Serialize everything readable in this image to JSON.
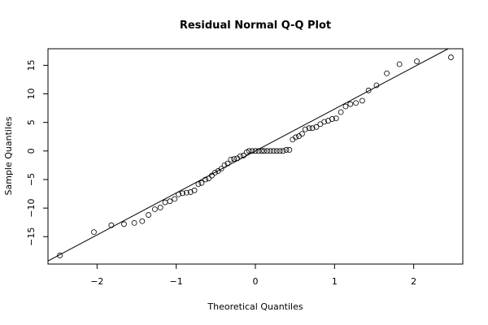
{
  "chart_data": {
    "type": "scatter",
    "title": "Residual Normal Q-Q Plot",
    "xlabel": "Theoretical Quantiles",
    "ylabel": "Sample Quantiles",
    "xlim": [
      -2.62,
      2.62
    ],
    "ylim": [
      -19.8,
      17.9
    ],
    "xticks": [
      -2,
      -1,
      0,
      1,
      2
    ],
    "yticks": [
      -15,
      -10,
      -5,
      0,
      5,
      10,
      15
    ],
    "xtick_labels": [
      "−2",
      "−1",
      "0",
      "1",
      "2"
    ],
    "ytick_labels": [
      "−15",
      "−10",
      "−5",
      "0",
      "5",
      "10",
      "15"
    ],
    "grid": false,
    "reference_line": {
      "intercept": 0.0,
      "slope": 7.35
    },
    "points": [
      [
        -2.47,
        -18.3
      ],
      [
        -2.04,
        -14.2
      ],
      [
        -1.82,
        -13.0
      ],
      [
        -1.66,
        -12.8
      ],
      [
        -1.53,
        -12.6
      ],
      [
        -1.43,
        -12.3
      ],
      [
        -1.35,
        -11.2
      ],
      [
        -1.27,
        -10.2
      ],
      [
        -1.2,
        -9.9
      ],
      [
        -1.14,
        -9.0
      ],
      [
        -1.08,
        -8.8
      ],
      [
        -1.02,
        -8.4
      ],
      [
        -0.97,
        -7.6
      ],
      [
        -0.92,
        -7.4
      ],
      [
        -0.87,
        -7.3
      ],
      [
        -0.82,
        -7.2
      ],
      [
        -0.77,
        -6.9
      ],
      [
        -0.72,
        -5.8
      ],
      [
        -0.68,
        -5.6
      ],
      [
        -0.63,
        -5.0
      ],
      [
        -0.59,
        -4.8
      ],
      [
        -0.55,
        -4.3
      ],
      [
        -0.51,
        -3.8
      ],
      [
        -0.47,
        -3.5
      ],
      [
        -0.43,
        -3.1
      ],
      [
        -0.39,
        -2.5
      ],
      [
        -0.35,
        -2.2
      ],
      [
        -0.31,
        -1.5
      ],
      [
        -0.27,
        -1.4
      ],
      [
        -0.23,
        -1.3
      ],
      [
        -0.19,
        -0.9
      ],
      [
        -0.15,
        -0.8
      ],
      [
        -0.11,
        -0.2
      ],
      [
        -0.08,
        0.0
      ],
      [
        -0.04,
        0.0
      ],
      [
        0.0,
        0.0
      ],
      [
        0.04,
        0.0
      ],
      [
        0.08,
        0.0
      ],
      [
        0.11,
        0.0
      ],
      [
        0.15,
        0.0
      ],
      [
        0.19,
        0.0
      ],
      [
        0.23,
        0.0
      ],
      [
        0.27,
        0.0
      ],
      [
        0.31,
        0.0
      ],
      [
        0.35,
        0.0
      ],
      [
        0.39,
        0.2
      ],
      [
        0.43,
        0.2
      ],
      [
        0.47,
        2.0
      ],
      [
        0.51,
        2.4
      ],
      [
        0.55,
        2.6
      ],
      [
        0.59,
        3.0
      ],
      [
        0.63,
        3.8
      ],
      [
        0.68,
        4.0
      ],
      [
        0.72,
        4.0
      ],
      [
        0.77,
        4.2
      ],
      [
        0.82,
        4.7
      ],
      [
        0.87,
        5.1
      ],
      [
        0.92,
        5.3
      ],
      [
        0.97,
        5.6
      ],
      [
        1.02,
        5.7
      ],
      [
        1.08,
        6.8
      ],
      [
        1.14,
        7.8
      ],
      [
        1.2,
        8.2
      ],
      [
        1.27,
        8.4
      ],
      [
        1.35,
        8.8
      ],
      [
        1.43,
        10.6
      ],
      [
        1.53,
        11.5
      ],
      [
        1.66,
        13.6
      ],
      [
        1.82,
        15.2
      ],
      [
        2.04,
        15.7
      ],
      [
        2.47,
        16.4
      ]
    ]
  }
}
